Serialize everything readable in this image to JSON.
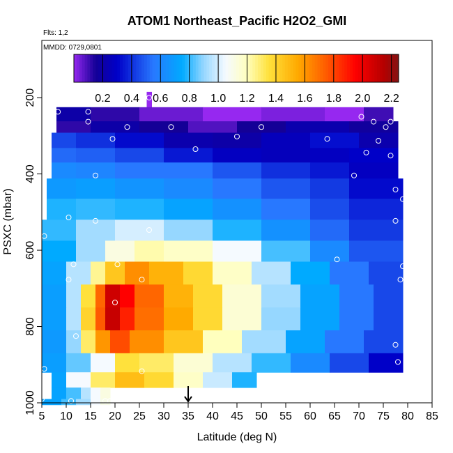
{
  "chart_data": {
    "type": "heatmap",
    "title": "ATOM1 Northeast_Pacific H2O2_GMI",
    "annotations": {
      "flights": "Flts: 1,2",
      "dates": "MMDD: 0729,0801"
    },
    "xlabel": "Latitude (deg N)",
    "ylabel": "PSXC (mbar)",
    "xlim": [
      5,
      85
    ],
    "ylim": [
      1000,
      50
    ],
    "y_reversed": true,
    "x_ticks": [
      "5",
      "10",
      "15",
      "20",
      "25",
      "30",
      "35",
      "40",
      "45",
      "50",
      "55",
      "60",
      "65",
      "70",
      "75",
      "80",
      "85"
    ],
    "y_ticks": [
      "200",
      "400",
      "600",
      "800",
      "1000"
    ],
    "colorbar": {
      "range": [
        0.0,
        2.25
      ],
      "ticks": [
        "0.2",
        "0.4",
        "0.6",
        "0.8",
        "1.0",
        "1.2",
        "1.4",
        "1.6",
        "1.8",
        "2.0",
        "2.2"
      ],
      "placement": "top, inside plot"
    },
    "marker_latitude": 35,
    "profile_points": [
      [
        8.3,
        237
      ],
      [
        14.5,
        237
      ],
      [
        14.5,
        263
      ],
      [
        22.5,
        277
      ],
      [
        31.5,
        277
      ],
      [
        45,
        302
      ],
      [
        50,
        277
      ],
      [
        67.5,
        217
      ],
      [
        70.5,
        250
      ],
      [
        73,
        263
      ],
      [
        76.5,
        263
      ],
      [
        75.5,
        277
      ],
      [
        74,
        313
      ],
      [
        76.5,
        352
      ],
      [
        71.5,
        344
      ],
      [
        63.5,
        308
      ],
      [
        36.5,
        335
      ],
      [
        19.5,
        308
      ],
      [
        16,
        404
      ],
      [
        69,
        404
      ],
      [
        77.5,
        441
      ],
      [
        79,
        466
      ],
      [
        77.5,
        523
      ],
      [
        10.5,
        514
      ],
      [
        16,
        523
      ],
      [
        27,
        547
      ],
      [
        5.5,
        563
      ],
      [
        11.5,
        637
      ],
      [
        20.5,
        637
      ],
      [
        65.5,
        624
      ],
      [
        79,
        642
      ],
      [
        10.5,
        677
      ],
      [
        25.5,
        677
      ],
      [
        78.5,
        677
      ],
      [
        20,
        737
      ],
      [
        12,
        825
      ],
      [
        77.5,
        848
      ],
      [
        78,
        893
      ],
      [
        5.5,
        911
      ],
      [
        25.5,
        917
      ],
      [
        11,
        995
      ],
      [
        18,
        995
      ],
      [
        19,
        995
      ],
      [
        5,
        990
      ],
      [
        27,
        200
      ]
    ],
    "rows": [
      {
        "p": [
          185,
          225
        ],
        "cells": [
          [
            26.5,
            27.5,
            0.0
          ]
        ]
      },
      {
        "p": [
          225,
          262
        ],
        "cells": [
          [
            8,
            15,
            0.2
          ],
          [
            15,
            25,
            0.12
          ],
          [
            25,
            38,
            0.05
          ],
          [
            38,
            50,
            0.0
          ],
          [
            50,
            63,
            0.03
          ],
          [
            63,
            71,
            0.0
          ],
          [
            71,
            77,
            0.1
          ]
        ]
      },
      {
        "p": [
          262,
          292
        ],
        "cells": [
          [
            8,
            15,
            0.12
          ],
          [
            15,
            25,
            0.2
          ],
          [
            25,
            35,
            0.15
          ],
          [
            35,
            45,
            0.08
          ],
          [
            45,
            55,
            0.15
          ],
          [
            55,
            68,
            0.22
          ],
          [
            68,
            78,
            0.17
          ]
        ]
      },
      {
        "p": [
          292,
          332
        ],
        "cells": [
          [
            7,
            12,
            0.45
          ],
          [
            12,
            20,
            0.4
          ],
          [
            20,
            30,
            0.32
          ],
          [
            30,
            40,
            0.22
          ],
          [
            40,
            50,
            0.2
          ],
          [
            50,
            60,
            0.26
          ],
          [
            60,
            70,
            0.33
          ],
          [
            70,
            78,
            0.22
          ]
        ]
      },
      {
        "p": [
          332,
          370
        ],
        "cells": [
          [
            7,
            12,
            0.52
          ],
          [
            12,
            20,
            0.5
          ],
          [
            20,
            30,
            0.45
          ],
          [
            30,
            40,
            0.35
          ],
          [
            40,
            50,
            0.28
          ],
          [
            50,
            60,
            0.26
          ],
          [
            60,
            68,
            0.28
          ],
          [
            68,
            78,
            0.3
          ]
        ]
      },
      {
        "p": [
          370,
          412
        ],
        "cells": [
          [
            7,
            12,
            0.62
          ],
          [
            12,
            20,
            0.6
          ],
          [
            20,
            30,
            0.55
          ],
          [
            30,
            40,
            0.55
          ],
          [
            40,
            50,
            0.48
          ],
          [
            50,
            60,
            0.4
          ],
          [
            60,
            68,
            0.35
          ],
          [
            68,
            78,
            0.28
          ]
        ]
      },
      {
        "p": [
          412,
          465
        ],
        "cells": [
          [
            6,
            12,
            0.68
          ],
          [
            12,
            20,
            0.7
          ],
          [
            20,
            30,
            0.66
          ],
          [
            30,
            40,
            0.62
          ],
          [
            40,
            50,
            0.55
          ],
          [
            50,
            60,
            0.48
          ],
          [
            60,
            68,
            0.42
          ],
          [
            68,
            79,
            0.32
          ]
        ]
      },
      {
        "p": [
          465,
          520
        ],
        "cells": [
          [
            6,
            12,
            0.78
          ],
          [
            12,
            20,
            0.8
          ],
          [
            20,
            30,
            0.78
          ],
          [
            30,
            40,
            0.72
          ],
          [
            40,
            50,
            0.65
          ],
          [
            50,
            60,
            0.55
          ],
          [
            60,
            68,
            0.46
          ],
          [
            68,
            79,
            0.38
          ]
        ]
      },
      {
        "p": [
          520,
          575
        ],
        "cells": [
          [
            5,
            12,
            0.8
          ],
          [
            12,
            20,
            0.92
          ],
          [
            20,
            30,
            1.0
          ],
          [
            30,
            40,
            0.9
          ],
          [
            40,
            50,
            0.78
          ],
          [
            50,
            60,
            0.65
          ],
          [
            60,
            68,
            0.52
          ],
          [
            68,
            79,
            0.42
          ]
        ]
      },
      {
        "p": [
          575,
          630
        ],
        "cells": [
          [
            5,
            12,
            0.75
          ],
          [
            12,
            18,
            0.92
          ],
          [
            18,
            24,
            1.12
          ],
          [
            24,
            30,
            1.22
          ],
          [
            30,
            40,
            1.18
          ],
          [
            40,
            50,
            1.05
          ],
          [
            50,
            60,
            0.82
          ],
          [
            60,
            68,
            0.62
          ],
          [
            68,
            79,
            0.48
          ]
        ]
      },
      {
        "p": [
          630,
          690
        ],
        "cells": [
          [
            5,
            10,
            0.72
          ],
          [
            10,
            15,
            0.95
          ],
          [
            15,
            18,
            1.25
          ],
          [
            18,
            22,
            1.45
          ],
          [
            22,
            27,
            1.62
          ],
          [
            27,
            34,
            1.52
          ],
          [
            34,
            40,
            1.38
          ],
          [
            40,
            48,
            1.18
          ],
          [
            48,
            56,
            0.95
          ],
          [
            56,
            64,
            0.75
          ],
          [
            64,
            72,
            0.55
          ],
          [
            72,
            79,
            0.45
          ]
        ]
      },
      {
        "p": [
          690,
          750
        ],
        "cells": [
          [
            5,
            10,
            0.7
          ],
          [
            10,
            13,
            0.95
          ],
          [
            13,
            16,
            1.35
          ],
          [
            16,
            18,
            1.72
          ],
          [
            18,
            21,
            2.08
          ],
          [
            21,
            24,
            1.95
          ],
          [
            24,
            30,
            1.72
          ],
          [
            30,
            36,
            1.52
          ],
          [
            36,
            42,
            1.38
          ],
          [
            42,
            50,
            1.15
          ],
          [
            50,
            58,
            0.92
          ],
          [
            58,
            66,
            0.72
          ],
          [
            66,
            73,
            0.55
          ],
          [
            73,
            79,
            0.45
          ]
        ]
      },
      {
        "p": [
          750,
          810
        ],
        "cells": [
          [
            5,
            10,
            0.7
          ],
          [
            10,
            13,
            0.95
          ],
          [
            13,
            16,
            1.4
          ],
          [
            16,
            18,
            1.75
          ],
          [
            18,
            21,
            2.1
          ],
          [
            21,
            24,
            1.88
          ],
          [
            24,
            30,
            1.7
          ],
          [
            30,
            36,
            1.55
          ],
          [
            36,
            42,
            1.38
          ],
          [
            42,
            50,
            1.15
          ],
          [
            50,
            58,
            0.9
          ],
          [
            58,
            66,
            0.72
          ],
          [
            66,
            73,
            0.55
          ],
          [
            73,
            79,
            0.45
          ]
        ]
      },
      {
        "p": [
          810,
          870
        ],
        "cells": [
          [
            5,
            10,
            0.68
          ],
          [
            10,
            13,
            0.9
          ],
          [
            13,
            16,
            1.3
          ],
          [
            16,
            19,
            1.6
          ],
          [
            19,
            23,
            1.78
          ],
          [
            23,
            30,
            1.62
          ],
          [
            30,
            38,
            1.45
          ],
          [
            38,
            46,
            1.2
          ],
          [
            46,
            55,
            0.92
          ],
          [
            55,
            63,
            0.72
          ],
          [
            63,
            71,
            0.55
          ],
          [
            71,
            79,
            0.45
          ]
        ]
      },
      {
        "p": [
          870,
          920
        ],
        "cells": [
          [
            5,
            10,
            0.7
          ],
          [
            10,
            15,
            0.85
          ],
          [
            15,
            20,
            1.05
          ],
          [
            20,
            25,
            1.35
          ],
          [
            25,
            32,
            1.3
          ],
          [
            32,
            40,
            1.15
          ],
          [
            40,
            48,
            0.95
          ],
          [
            48,
            56,
            0.8
          ],
          [
            56,
            64,
            0.62
          ],
          [
            64,
            72,
            0.45
          ],
          [
            72,
            79,
            0.3
          ]
        ]
      },
      {
        "p": [
          920,
          960
        ],
        "cells": [
          [
            7,
            10,
            0.72
          ],
          [
            10,
            15,
            1.05
          ],
          [
            15,
            20,
            1.3
          ],
          [
            20,
            26,
            1.48
          ],
          [
            26,
            32,
            1.38
          ],
          [
            32,
            38,
            1.18
          ],
          [
            38,
            44,
            0.98
          ],
          [
            44,
            49,
            0.78
          ]
        ]
      },
      {
        "p": [
          960,
          990
        ],
        "cells": [
          [
            7,
            10,
            0.72
          ],
          [
            10,
            13,
            0.82
          ],
          [
            13,
            15,
            0.95
          ],
          [
            15,
            17,
            1.05
          ],
          [
            17,
            19,
            1.12
          ]
        ]
      },
      {
        "p": [
          990,
          1005
        ],
        "cells": [
          [
            5,
            9,
            0.72
          ],
          [
            9,
            12,
            0.82
          ],
          [
            12,
            15,
            0.92
          ],
          [
            15,
            17,
            1.05
          ],
          [
            17,
            19,
            1.1
          ]
        ]
      }
    ]
  }
}
